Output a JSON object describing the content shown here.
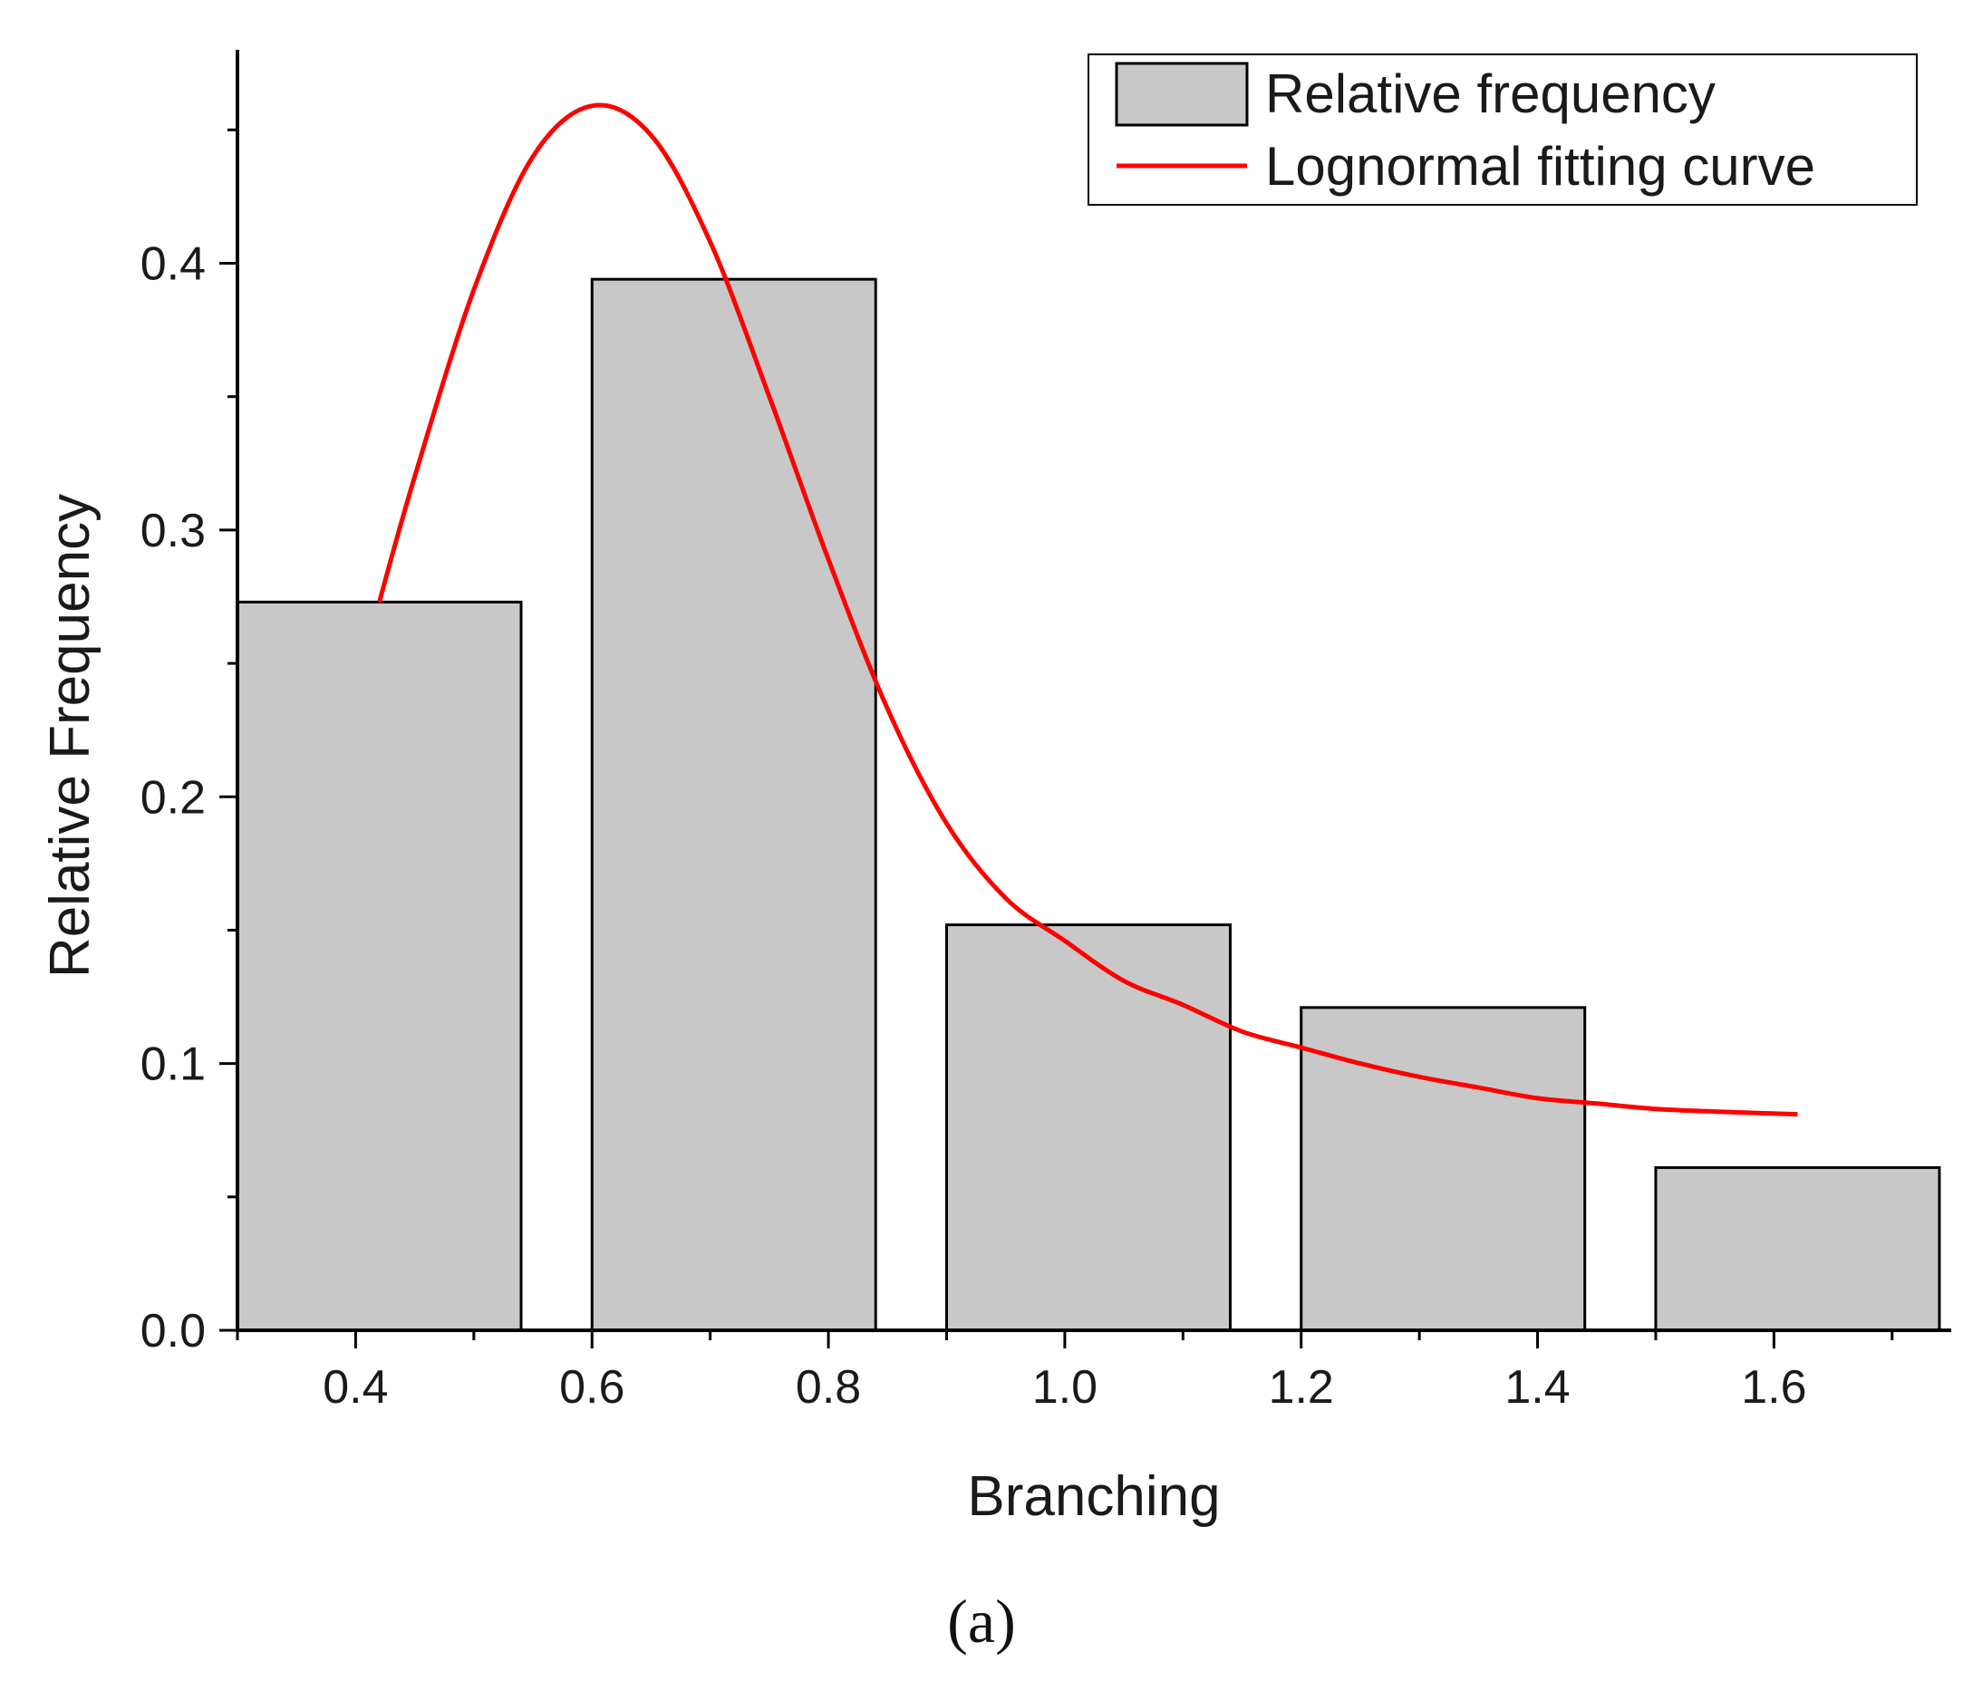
{
  "chart_data": {
    "type": "bar",
    "title": "",
    "xlabel": "Branching",
    "ylabel": "Relative Frequency",
    "panel_label": "(a)",
    "x_ticks": [
      "0.4",
      "0.6",
      "0.8",
      "1.0",
      "1.2",
      "1.4",
      "1.6"
    ],
    "y_ticks": [
      "0.0",
      "0.1",
      "0.2",
      "0.3",
      "0.4"
    ],
    "xlim": [
      0.3,
      1.75
    ],
    "ylim": [
      0,
      0.48
    ],
    "grid": false,
    "legend_position": "top-right",
    "series": [
      {
        "name": "Relative frequency",
        "kind": "bar",
        "bins": [
          {
            "start": 0.3,
            "end": 0.54,
            "value": 0.273
          },
          {
            "start": 0.6,
            "end": 0.84,
            "value": 0.394
          },
          {
            "start": 0.9,
            "end": 1.14,
            "value": 0.152
          },
          {
            "start": 1.2,
            "end": 1.44,
            "value": 0.121
          },
          {
            "start": 1.5,
            "end": 1.74,
            "value": 0.061
          }
        ]
      },
      {
        "name": "Lognormal fitting curve",
        "kind": "line",
        "x": [
          0.42,
          0.45,
          0.5,
          0.55,
          0.6,
          0.65,
          0.7,
          0.75,
          0.8,
          0.85,
          0.9,
          0.95,
          1.0,
          1.05,
          1.1,
          1.15,
          1.2,
          1.25,
          1.3,
          1.35,
          1.4,
          1.45,
          1.5,
          1.55,
          1.62
        ],
        "values": [
          0.273,
          0.32,
          0.39,
          0.44,
          0.459,
          0.448,
          0.408,
          0.35,
          0.289,
          0.233,
          0.19,
          0.162,
          0.146,
          0.131,
          0.122,
          0.112,
          0.106,
          0.1,
          0.095,
          0.091,
          0.087,
          0.085,
          0.083,
          0.082,
          0.081
        ]
      }
    ],
    "colors": {
      "bar_fill": "#c8c8c8",
      "bar_stroke": "#000000",
      "curve": "#ff0000",
      "axis": "#000000"
    }
  }
}
